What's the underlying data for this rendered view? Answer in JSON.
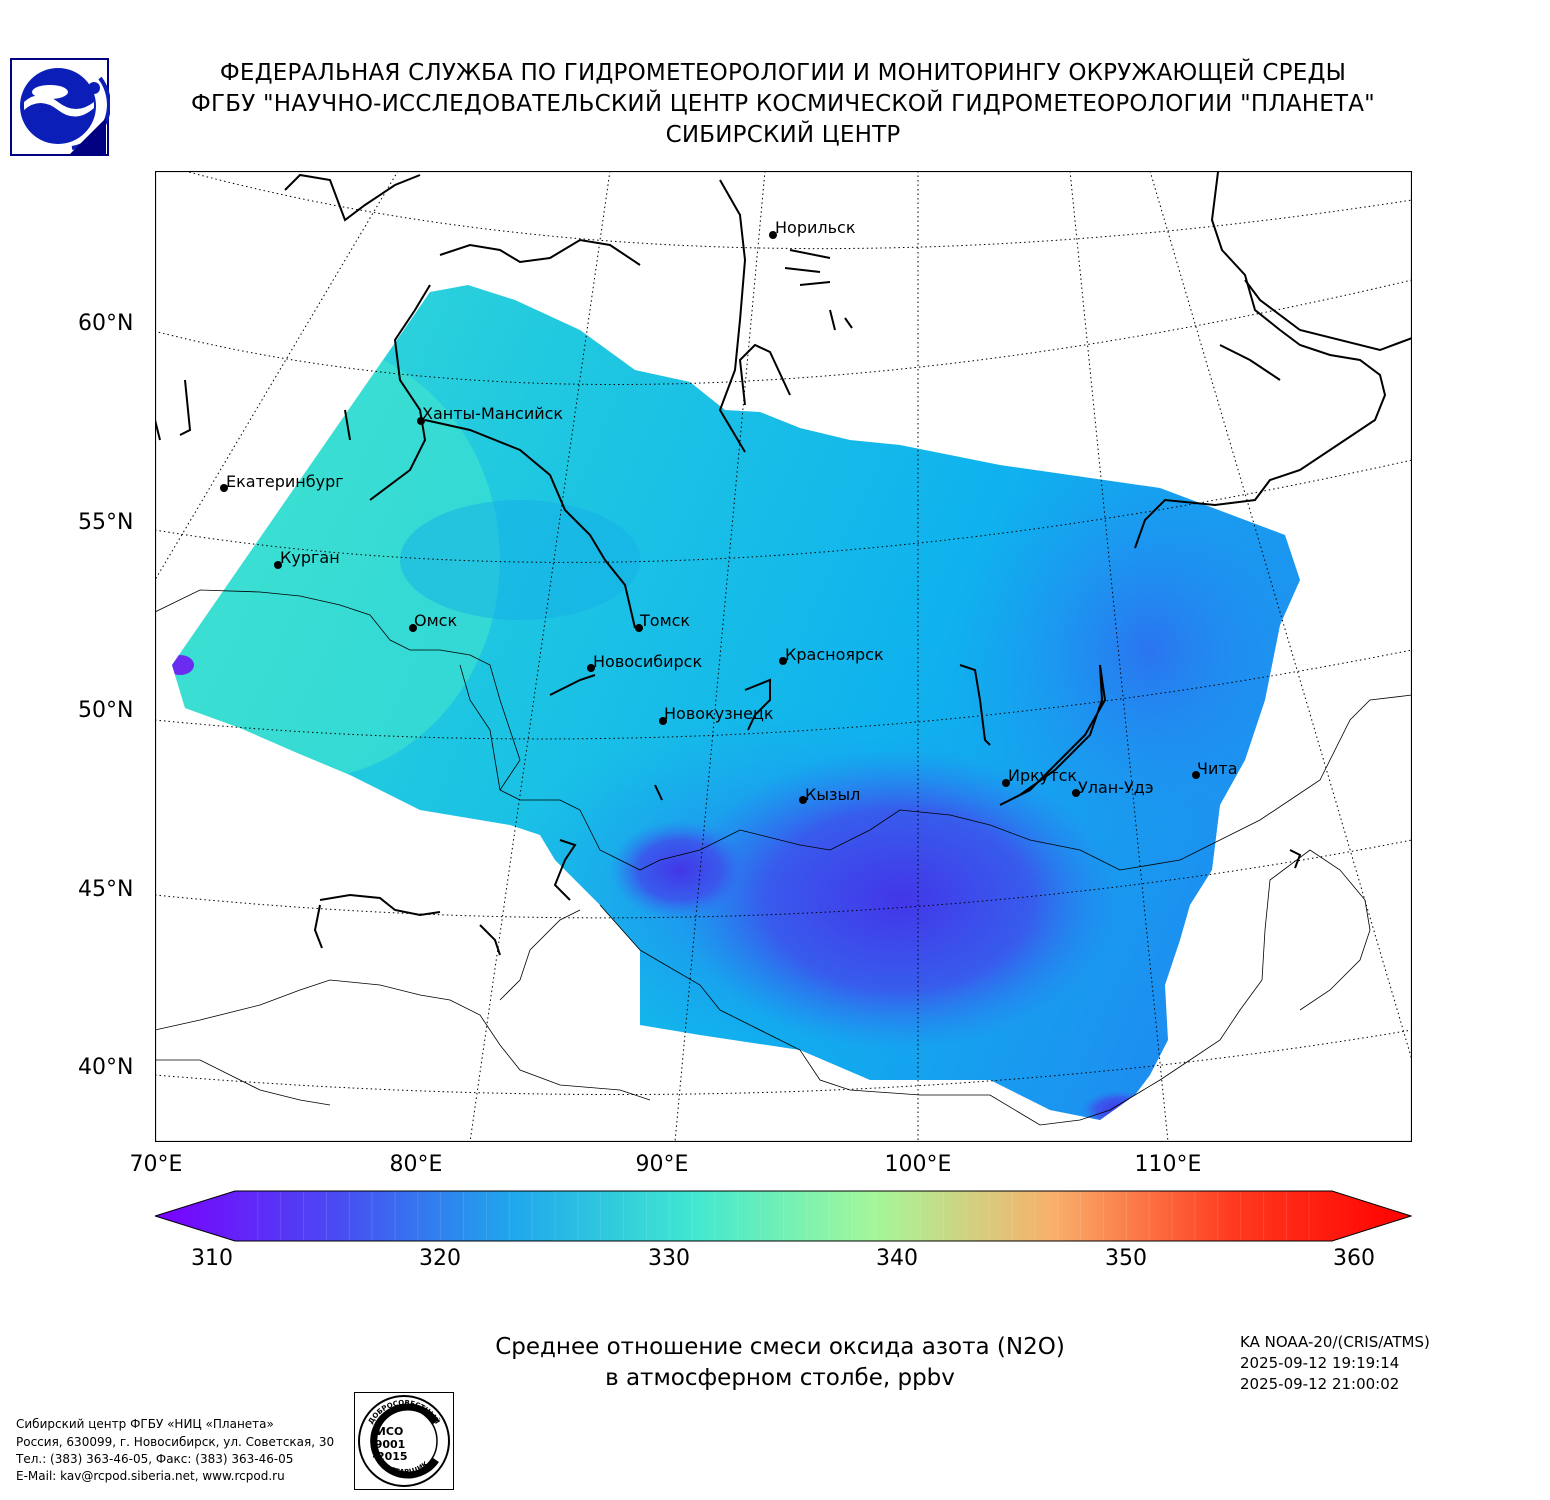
{
  "header": {
    "line1": "ФЕДЕРАЛЬНАЯ СЛУЖБА ПО ГИДРОМЕТЕОРОЛОГИИ И МОНИТОРИНГУ ОКРУЖАЮЩЕЙ СРЕДЫ",
    "line2": "ФГБУ \"НАУЧНО-ИССЛЕДОВАТЕЛЬСКИЙ ЦЕНТР КОСМИЧЕСКОЙ ГИДРОМЕТЕОРОЛОГИИ \"ПЛАНЕТА\"",
    "line3": "СИБИРСКИЙ ЦЕНТР"
  },
  "map": {
    "lat_labels": [
      "60°N",
      "55°N",
      "50°N",
      "45°N",
      "40°N"
    ],
    "lon_labels": [
      "70°E",
      "80°E",
      "90°E",
      "100°E",
      "110°E"
    ],
    "cities": [
      {
        "name": "Норильск"
      },
      {
        "name": "Ханты-Мансийск"
      },
      {
        "name": "Екатеринбург"
      },
      {
        "name": "Курган"
      },
      {
        "name": "Омск"
      },
      {
        "name": "Томск"
      },
      {
        "name": "Новосибирск"
      },
      {
        "name": "Красноярск"
      },
      {
        "name": "Новокузнецк"
      },
      {
        "name": "Кызыл"
      },
      {
        "name": "Иркутск"
      },
      {
        "name": "Улан-Удэ"
      },
      {
        "name": "Чита"
      }
    ]
  },
  "colorbar": {
    "ticks": [
      "310",
      "320",
      "330",
      "340",
      "350",
      "360"
    ],
    "min": 310,
    "max": 360,
    "colors": [
      "#7a00ff",
      "#4a4af2",
      "#1fa8ec",
      "#40e8d0",
      "#a4f79a",
      "#f8b06a",
      "#ff3a1f",
      "#ff0000"
    ]
  },
  "caption": {
    "line1": "Среднее отношение смеси оксида азота (N2O)",
    "line2": "в атмосферном столбе, ppbv"
  },
  "meta": {
    "satellite": "KA NOAA-20/(CRIS/ATMS)",
    "time1": "2025-09-12 19:19:14",
    "time2": "2025-09-12 21:00:02"
  },
  "footer": {
    "line1": "Сибирский центр ФГБУ «НИЦ «Планета»",
    "line2": "Россия, 630099, г. Новосибирск, ул. Советская, 30",
    "line3": "Тел.: (383) 363-46-05, Факс: (383) 363-46-05",
    "line4": "E-Mail: kav@rcpod.siberia.net, www.rcpod.ru"
  },
  "iso_badge": {
    "top": "ДОБРОСОВЕСТНЫЙ",
    "mid1": "ИСО",
    "mid2": "9001",
    "mid3": "-2015",
    "bottom": "ПОСТАВЩИК"
  }
}
